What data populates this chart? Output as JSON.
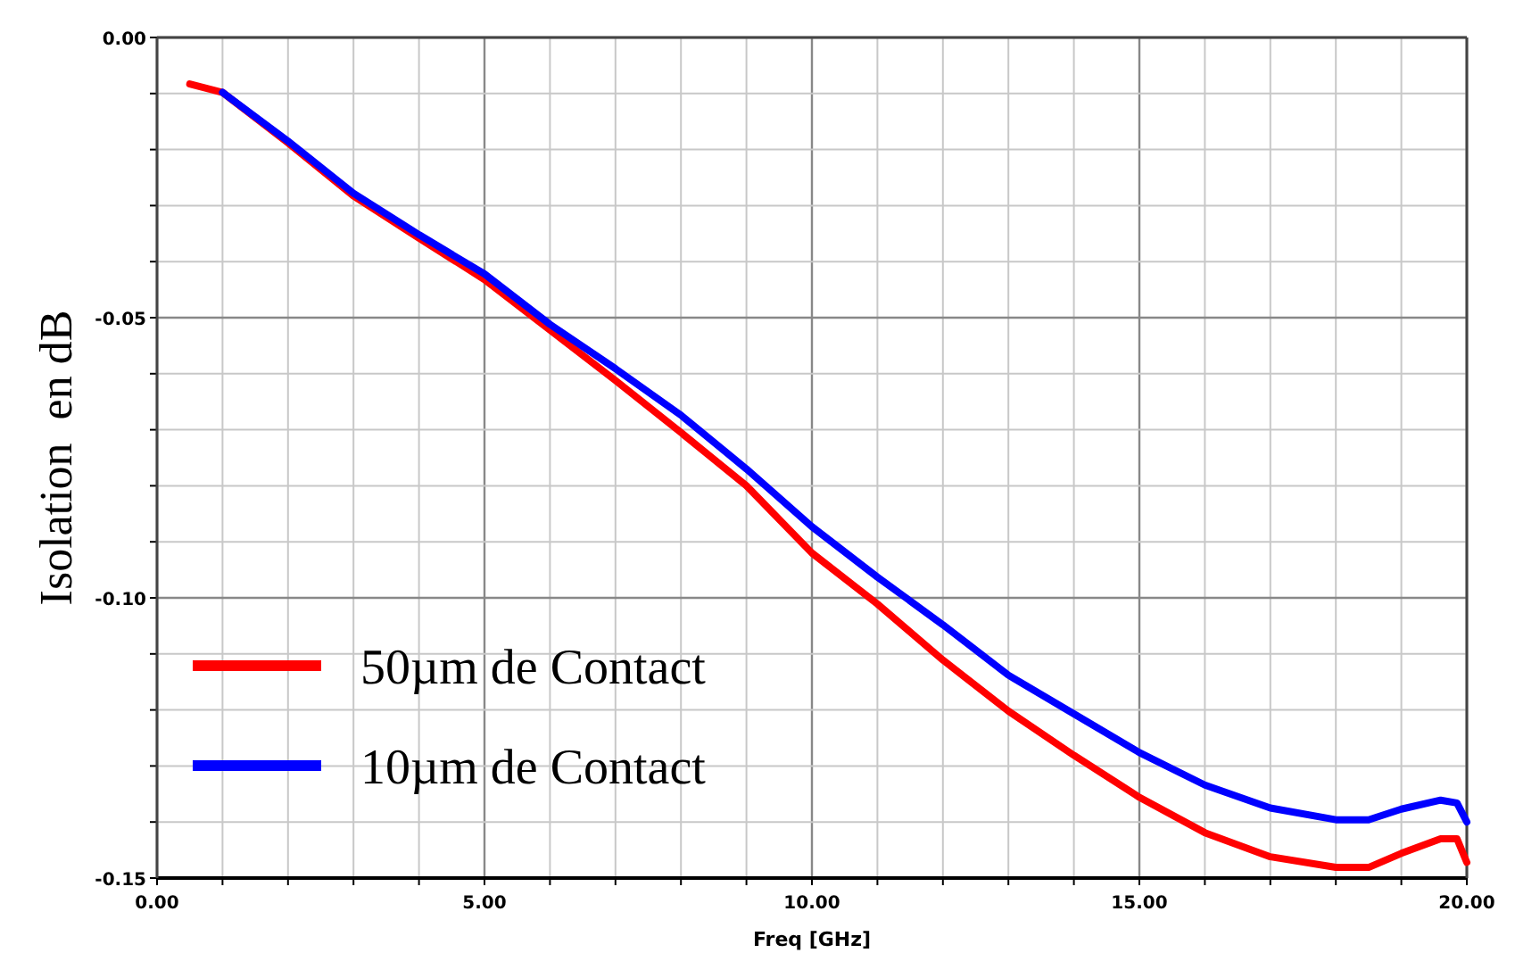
{
  "chart_data": {
    "type": "line",
    "xlabel": "Freq [GHz]",
    "ylabel": "Isolation  en dB",
    "xlim": [
      0,
      20
    ],
    "ylim": [
      -0.15,
      0
    ],
    "xticks": [
      {
        "value": 0,
        "label": "0.00"
      },
      {
        "value": 1,
        "label": null
      },
      {
        "value": 2,
        "label": null
      },
      {
        "value": 3,
        "label": null
      },
      {
        "value": 4,
        "label": null
      },
      {
        "value": 5,
        "label": "5.00"
      },
      {
        "value": 6,
        "label": null
      },
      {
        "value": 7,
        "label": null
      },
      {
        "value": 8,
        "label": null
      },
      {
        "value": 9,
        "label": null
      },
      {
        "value": 10,
        "label": "10.00"
      },
      {
        "value": 11,
        "label": null
      },
      {
        "value": 12,
        "label": null
      },
      {
        "value": 13,
        "label": null
      },
      {
        "value": 14,
        "label": null
      },
      {
        "value": 15,
        "label": "15.00"
      },
      {
        "value": 16,
        "label": null
      },
      {
        "value": 17,
        "label": null
      },
      {
        "value": 18,
        "label": null
      },
      {
        "value": 19,
        "label": null
      },
      {
        "value": 20,
        "label": "20.00"
      }
    ],
    "yticks": [
      {
        "value": -0.15,
        "label": "-0.15"
      },
      {
        "value": -0.14,
        "label": null
      },
      {
        "value": -0.13,
        "label": null
      },
      {
        "value": -0.12,
        "label": null
      },
      {
        "value": -0.11,
        "label": null
      },
      {
        "value": -0.1,
        "label": "-0.10"
      },
      {
        "value": -0.09,
        "label": null
      },
      {
        "value": -0.08,
        "label": null
      },
      {
        "value": -0.07,
        "label": null
      },
      {
        "value": -0.06,
        "label": null
      },
      {
        "value": -0.05,
        "label": "-0.05"
      },
      {
        "value": -0.04,
        "label": null
      },
      {
        "value": -0.03,
        "label": null
      },
      {
        "value": -0.02,
        "label": null
      },
      {
        "value": -0.01,
        "label": null
      },
      {
        "value": 0,
        "label": "0.00"
      }
    ],
    "x": [
      0.5,
      1,
      2,
      3,
      4,
      5,
      6,
      7,
      8,
      9,
      10,
      11,
      12,
      13,
      14,
      15,
      16,
      17,
      18,
      18.5,
      19,
      19.6,
      19.85,
      20
    ],
    "series": [
      {
        "name": "50µm de Contact",
        "color": "#ff0000",
        "values": [
          -0.0083,
          -0.0098,
          -0.0188,
          -0.0283,
          -0.0358,
          -0.0432,
          -0.0522,
          -0.0612,
          -0.0705,
          -0.08,
          -0.092,
          -0.1011,
          -0.1111,
          -0.1202,
          -0.1281,
          -0.1356,
          -0.1419,
          -0.1462,
          -0.1481,
          -0.1481,
          -0.1456,
          -0.143,
          -0.143,
          -0.1472
        ]
      },
      {
        "name": "10µm de Contact",
        "color": "#0000ff",
        "values": [
          null,
          -0.0098,
          -0.0185,
          -0.0278,
          -0.0352,
          -0.0422,
          -0.0512,
          -0.0591,
          -0.0674,
          -0.077,
          -0.0873,
          -0.0963,
          -0.1048,
          -0.1138,
          -0.1207,
          -0.1276,
          -0.1334,
          -0.1375,
          -0.1396,
          -0.1396,
          -0.1377,
          -0.1361,
          -0.1366,
          -0.14
        ]
      }
    ],
    "grid": true,
    "legend": "bottom left",
    "marker": "none",
    "line_style": "solid"
  }
}
